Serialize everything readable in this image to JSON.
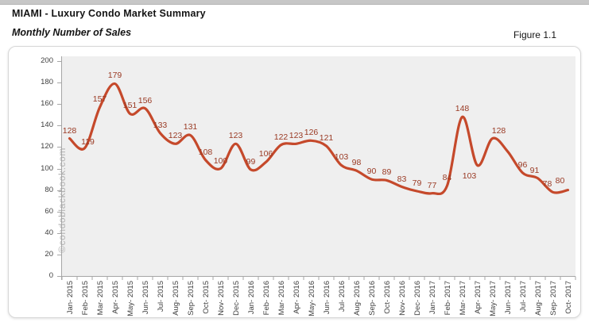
{
  "header": {
    "title": "MIAMI - Luxury Condo Market Summary",
    "subtitle": "Monthly Number of Sales",
    "figure_label": "Figure 1.1"
  },
  "watermark": "©condoblackbook.com",
  "chart_data": {
    "type": "line",
    "title": "Monthly Number of Sales",
    "smooth": true,
    "grid": false,
    "legend_position": "none",
    "plot_bg": "#EFEFEF",
    "line_color": "#C5492B",
    "label_color": "#9A3A24",
    "axis_color": "#A6A6A6",
    "tick_text_color": "#3F3F3F",
    "ylim": [
      0,
      200
    ],
    "yticks": [
      0,
      20,
      40,
      60,
      80,
      100,
      120,
      140,
      160,
      180,
      200
    ],
    "categories": [
      "Jan- 2015",
      "Feb- 2015",
      "Mar- 2015",
      "Apr- 2015",
      "May- 2015",
      "Jun- 2015",
      "Jul- 2015",
      "Aug- 2015",
      "Sep- 2015",
      "Oct- 2015",
      "Nov- 2015",
      "Dec- 2015",
      "Jan- 2016",
      "Feb- 2016",
      "Mar- 2016",
      "Apr- 2016",
      "May- 2016",
      "Jun- 2016",
      "Jul- 2016",
      "Aug- 2016",
      "Sep- 2016",
      "Oct- 2016",
      "Nov- 2016",
      "Dec- 2016",
      "Jan- 2017",
      "Feb- 2017",
      "Mar- 2017",
      "Apr- 2017",
      "May- 2017",
      "Jun- 2017",
      "Jul- 2017",
      "Aug- 2017",
      "Sep- 2017",
      "Oct- 2017"
    ],
    "series": [
      {
        "name": "Monthly Number of Sales",
        "values": [
          128,
          119,
          157,
          179,
          151,
          156,
          133,
          123,
          131,
          108,
          100,
          123,
          99,
          106,
          122,
          123,
          126,
          121,
          103,
          98,
          90,
          89,
          83,
          79,
          77,
          84,
          148,
          103,
          128,
          116,
          96,
          91,
          78,
          80
        ]
      }
    ],
    "point_labels": [
      "128",
      "119",
      "157",
      "179",
      "151",
      "156",
      "133",
      "123",
      "131",
      "108",
      "100",
      "123",
      "99",
      "106",
      "122",
      "123",
      "126",
      "121",
      "103",
      "98",
      "90",
      "89",
      "83",
      "79",
      "77",
      "84",
      "148",
      "103",
      "128",
      "",
      "96",
      "91",
      "78",
      "80"
    ],
    "label_offsets": {
      "1": {
        "dx": 4,
        "dy": 2
      },
      "27": {
        "dx": -10,
        "dy": 24
      },
      "28": {
        "dx": 8,
        "dy": 0
      },
      "31": {
        "dx": -4,
        "dy": 0
      },
      "32": {
        "dx": -7,
        "dy": 0
      },
      "33": {
        "dx": -10,
        "dy": -2
      }
    }
  }
}
